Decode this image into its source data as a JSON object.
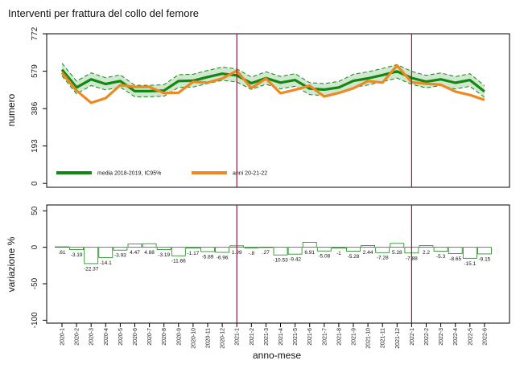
{
  "title": "Interventi per frattura del collo del femore",
  "chart_data": [
    {
      "type": "line",
      "ylabel": "numero",
      "xlabel": "",
      "ylim": [
        0,
        772
      ],
      "yticks": [
        0,
        193,
        386,
        579,
        772
      ],
      "legend_placement": "bottom-left",
      "series": [
        {
          "name": "media 2018-2019, IC95%",
          "color": "#118811",
          "values": [
            587,
            495,
            537,
            513,
            528,
            476,
            476,
            479,
            528,
            530,
            549,
            566,
            557,
            517,
            543,
            520,
            533,
            489,
            484,
            495,
            529,
            542,
            559,
            578,
            544,
            525,
            537,
            519,
            533,
            474
          ],
          "ci_lower": [
            555,
            462,
            505,
            482,
            497,
            447,
            447,
            450,
            495,
            497,
            515,
            532,
            523,
            485,
            511,
            488,
            501,
            458,
            454,
            464,
            495,
            508,
            525,
            543,
            511,
            493,
            505,
            487,
            501,
            444
          ],
          "ci_upper": [
            620,
            528,
            570,
            545,
            560,
            506,
            506,
            509,
            561,
            563,
            583,
            600,
            591,
            549,
            576,
            552,
            566,
            520,
            515,
            526,
            563,
            576,
            593,
            613,
            578,
            557,
            570,
            551,
            566,
            504
          ]
        },
        {
          "name": "anni 20-21-22",
          "color": "#ee8822",
          "values": [
            571,
            479,
            416,
            440,
            507,
            498,
            498,
            466,
            468,
            524,
            520,
            541,
            581,
            492,
            540,
            465,
            483,
            504,
            448,
            467,
            491,
            528,
            520,
            608,
            522,
            514,
            509,
            474,
            456,
            431
          ]
        }
      ]
    },
    {
      "type": "bar",
      "ylabel": "variazione %",
      "xlabel": "anno-mese",
      "ylim": [
        -100,
        50
      ],
      "yticks": [
        -100,
        -50,
        0,
        50
      ],
      "categories": [
        "2020-1",
        "2020-2",
        "2020-3",
        "2020-4",
        "2020-5",
        "2020-6",
        "2020-7",
        "2020-8",
        "2020-9",
        "2020-10",
        "2020-11",
        "2020-12",
        "2021-1",
        "2021-2",
        "2021-3",
        "2021-4",
        "2021-5",
        "2021-6",
        "2021-7",
        "2021-8",
        "2021-9",
        "2021-10",
        "2021-11",
        "2021-12",
        "2022-1",
        "2022-2",
        "2022-3",
        "2022-4",
        "2022-5",
        "2022-6"
      ],
      "values": [
        0.61,
        -3.19,
        -22.37,
        -14.1,
        -3.93,
        4.47,
        4.88,
        -3.19,
        -11.66,
        -1.17,
        -5.89,
        -6.96,
        1.99,
        -0.8,
        0.27,
        -10.53,
        -9.42,
        6.91,
        -5.08,
        -1,
        -5.28,
        2.44,
        -7.28,
        5.28,
        -7.88,
        2.2,
        -5.3,
        -8.65,
        -15.1,
        -9.15
      ],
      "labels": [
        ".61",
        "-3.19",
        "-22.37",
        "-14.1",
        "-3.93",
        "4.47",
        "4.88",
        "-3.19",
        "-11.66",
        "-1.17",
        "-5.89",
        "-6.96",
        "1.99",
        "-.8",
        ".27",
        "-10.53",
        "-9.42",
        "6.91",
        "-5.08",
        "-1",
        "-5.28",
        "2.44",
        "-7.28",
        "5.28",
        "-7.88",
        "2.2",
        "-5.3",
        "-8.65",
        "-15.1",
        "-9.15"
      ],
      "color": "#118811"
    }
  ],
  "markers": [
    12,
    24
  ],
  "marker_color": "#8b1a3a"
}
